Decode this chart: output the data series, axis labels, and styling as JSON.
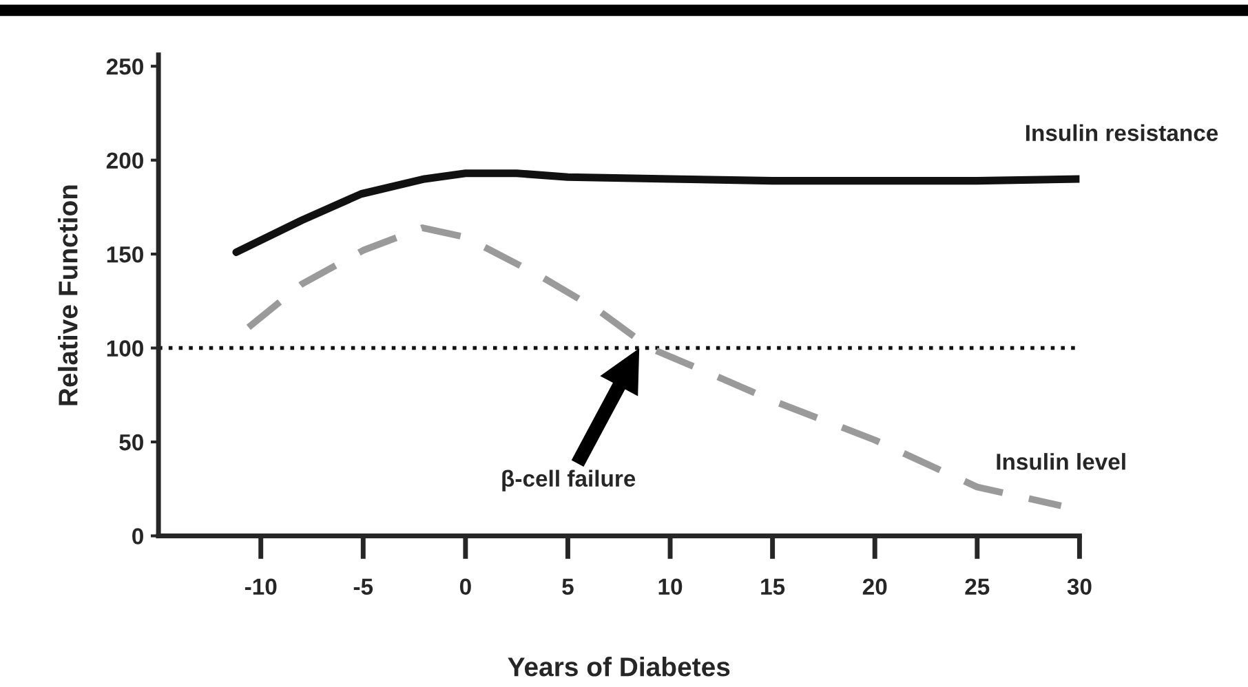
{
  "chart_data": {
    "type": "line",
    "xlabel": "Years of Diabetes",
    "ylabel": "Relative Function",
    "series": [
      {
        "name": "Insulin resistance",
        "color": "#111111",
        "line_style": "solid",
        "x": [
          -11.2,
          -8,
          -5.1,
          -2,
          0,
          2.5,
          5,
          10,
          15,
          20,
          25,
          30
        ],
        "values": [
          151,
          168,
          182,
          190,
          193,
          193,
          191,
          190,
          189,
          189,
          189,
          190
        ]
      },
      {
        "name": "Insulin level",
        "color": "#9a9a9a",
        "line_style": "dashed",
        "x": [
          -10.6,
          -8,
          -5,
          -2.1,
          0,
          3.7,
          6.5,
          9,
          11.4,
          15,
          20,
          25,
          29.1
        ],
        "values": [
          111,
          134,
          152,
          164,
          159,
          138,
          120,
          100,
          89,
          72,
          51,
          26,
          16
        ]
      }
    ],
    "xlim": [
      -15,
      30
    ],
    "xticks": [
      -10,
      -5,
      0,
      5,
      10,
      15,
      20,
      25,
      30
    ],
    "ylim": [
      0,
      256
    ],
    "yticks": [
      0,
      50,
      100,
      150,
      200,
      250
    ],
    "ref_lines": [
      {
        "axis": "y",
        "value": 100,
        "color": "#111111",
        "line_style": "dotted"
      }
    ],
    "annotations": [
      "β-cell failure"
    ],
    "grid": false,
    "legend": false,
    "marker": "none"
  }
}
